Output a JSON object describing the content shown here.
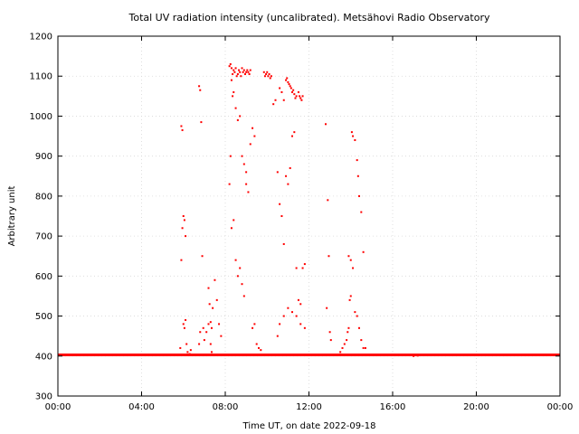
{
  "chart_data": {
    "type": "scatter",
    "title": "Total UV radiation intensity (uncalibrated). Metsähovi Radio Observatory",
    "xlabel": "Time UT, on date 2022-09-18",
    "ylabel": "Arbitrary unit",
    "xlim": [
      0,
      24
    ],
    "ylim": [
      300,
      1200
    ],
    "x_ticks": [
      "00:00",
      "04:00",
      "08:00",
      "12:00",
      "16:00",
      "20:00",
      "00:00"
    ],
    "y_ticks": [
      "300",
      "400",
      "500",
      "600",
      "700",
      "800",
      "900",
      "1000",
      "1100",
      "1200"
    ],
    "grid": true,
    "color": "#ff0000",
    "baseline": {
      "y": 403,
      "x_start": 0,
      "x_end": 24
    },
    "series": [
      {
        "x": [
          5.85,
          5.9,
          5.95,
          6.0,
          6.05,
          6.1,
          5.9,
          5.95,
          6.0,
          6.05,
          6.1,
          6.15,
          6.2,
          6.3,
          6.35,
          6.75,
          6.8,
          6.85,
          6.9,
          6.95,
          7.0,
          7.1,
          7.2,
          7.3,
          7.35,
          7.4,
          7.5,
          7.6,
          7.7,
          7.8,
          7.2,
          7.25,
          7.3,
          7.35,
          6.8,
          6.75,
          8.2,
          8.25,
          8.3,
          8.35,
          8.4,
          8.45,
          8.5,
          8.55,
          8.6,
          8.65,
          8.7,
          8.75,
          8.8,
          8.85,
          8.9,
          8.95,
          9.0,
          9.05,
          9.1,
          9.15,
          9.2,
          8.3,
          8.35,
          8.4,
          8.5,
          8.6,
          8.7,
          8.8,
          8.9,
          9.0,
          9.1,
          9.2,
          9.3,
          9.4,
          8.2,
          8.25,
          8.3,
          8.4,
          8.5,
          8.6,
          8.7,
          8.8,
          8.9,
          9.0,
          9.3,
          9.4,
          9.5,
          9.6,
          9.7,
          9.85,
          9.9,
          9.95,
          10.0,
          10.05,
          10.1,
          10.15,
          10.2,
          10.3,
          10.4,
          10.5,
          10.6,
          10.7,
          10.8,
          10.9,
          10.95,
          11.0,
          11.05,
          11.1,
          11.15,
          11.2,
          11.25,
          11.3,
          11.35,
          11.4,
          11.5,
          11.55,
          11.6,
          11.65,
          11.7,
          10.6,
          10.7,
          10.8,
          10.9,
          11.0,
          11.1,
          11.2,
          11.3,
          11.4,
          11.5,
          11.6,
          11.7,
          11.8,
          10.5,
          10.6,
          10.8,
          11.0,
          11.2,
          11.4,
          11.6,
          11.8,
          12.8,
          12.9,
          12.95,
          13.0,
          13.05,
          12.85,
          13.5,
          13.6,
          13.7,
          13.8,
          13.85,
          13.9,
          13.95,
          14.0,
          14.05,
          14.1,
          14.2,
          14.3,
          14.35,
          14.4,
          14.5,
          14.6,
          14.7,
          13.9,
          14.0,
          14.1,
          14.2,
          14.3,
          14.4,
          14.5,
          14.6,
          16.0,
          16.5,
          17.0,
          17.2,
          17.5
        ],
        "y": [
          420,
          640,
          720,
          750,
          740,
          700,
          975,
          965,
          480,
          470,
          490,
          430,
          410,
          405,
          415,
          1075,
          1065,
          985,
          650,
          470,
          440,
          460,
          480,
          485,
          470,
          520,
          590,
          540,
          480,
          450,
          570,
          530,
          430,
          410,
          460,
          430,
          1125,
          1130,
          1120,
          1105,
          1115,
          1110,
          1120,
          1100,
          1105,
          1115,
          1110,
          1100,
          1120,
          1110,
          1115,
          1105,
          1110,
          1115,
          1110,
          1105,
          1115,
          1090,
          1050,
          1060,
          1020,
          990,
          1000,
          900,
          880,
          830,
          810,
          930,
          970,
          950,
          830,
          900,
          720,
          740,
          640,
          600,
          620,
          580,
          550,
          860,
          470,
          480,
          430,
          420,
          415,
          1110,
          1100,
          1105,
          1110,
          1100,
          1105,
          1095,
          1100,
          1030,
          1040,
          860,
          1070,
          1060,
          1040,
          1090,
          1095,
          1085,
          1080,
          1075,
          1070,
          1060,
          1065,
          1055,
          1045,
          1050,
          1060,
          1050,
          1045,
          1040,
          1050,
          780,
          750,
          680,
          850,
          830,
          870,
          950,
          960,
          620,
          540,
          530,
          620,
          630,
          450,
          480,
          500,
          520,
          510,
          500,
          480,
          470,
          980,
          790,
          650,
          460,
          440,
          520,
          410,
          420,
          430,
          440,
          460,
          470,
          540,
          550,
          960,
          950,
          940,
          890,
          850,
          800,
          760,
          660,
          420,
          650,
          640,
          620,
          510,
          500,
          470,
          440,
          420,
          403,
          402,
          400,
          401,
          403
        ]
      }
    ]
  }
}
